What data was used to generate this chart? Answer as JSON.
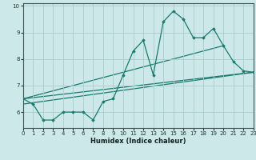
{
  "title": "",
  "xlabel": "Humidex (Indice chaleur)",
  "background_color": "#cce8e8",
  "grid_color": "#aacccc",
  "line_color": "#1a7a6e",
  "xlim": [
    0,
    23
  ],
  "ylim": [
    5.4,
    10.1
  ],
  "xticks": [
    0,
    1,
    2,
    3,
    4,
    5,
    6,
    7,
    8,
    9,
    10,
    11,
    12,
    13,
    14,
    15,
    16,
    17,
    18,
    19,
    20,
    21,
    22,
    23
  ],
  "yticks": [
    6,
    7,
    8,
    9,
    10
  ],
  "series_main": {
    "x": [
      0,
      1,
      2,
      3,
      4,
      5,
      6,
      7,
      8,
      9,
      10,
      11,
      12,
      13,
      14,
      15,
      16,
      17,
      18,
      19,
      20,
      21,
      22,
      23
    ],
    "y": [
      6.5,
      6.3,
      5.7,
      5.7,
      6.0,
      6.0,
      6.0,
      5.7,
      6.4,
      6.5,
      7.4,
      8.3,
      8.7,
      7.4,
      9.4,
      9.8,
      9.5,
      8.8,
      8.8,
      9.15,
      8.5,
      7.9,
      7.55,
      7.5
    ]
  },
  "series_lines": [
    {
      "x": [
        0,
        23
      ],
      "y": [
        6.5,
        7.5
      ]
    },
    {
      "x": [
        0,
        23
      ],
      "y": [
        6.3,
        7.5
      ]
    },
    {
      "x": [
        0,
        20
      ],
      "y": [
        6.5,
        8.5
      ]
    }
  ]
}
